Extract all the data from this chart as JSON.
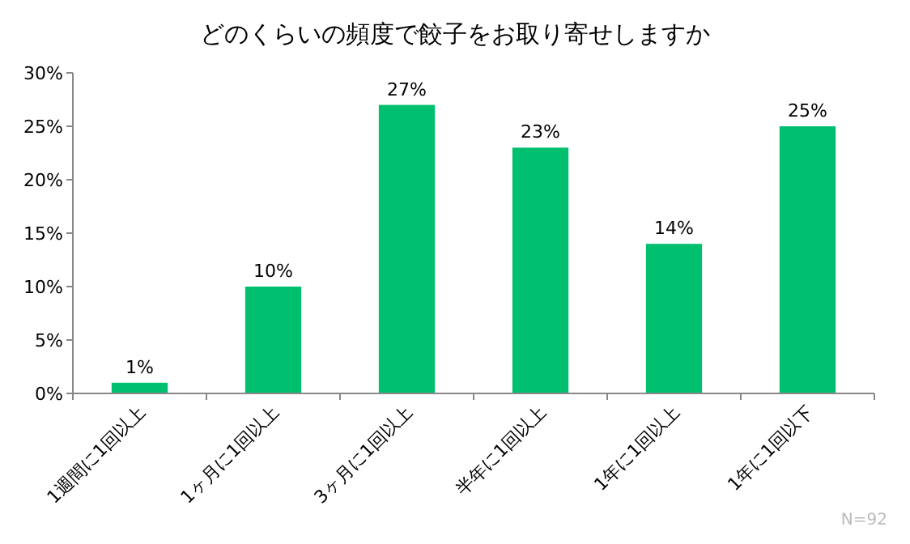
{
  "chart_data": {
    "type": "bar",
    "title": "どのくらいの頻度で餃子をお取り寄せしますか",
    "categories": [
      "1週間に1回以上",
      "1ヶ月に1回以上",
      "3ヶ月に1回以上",
      "半年に1回以上",
      "1年に1回以上",
      "1年に1回以下"
    ],
    "values": [
      1,
      10,
      27,
      23,
      14,
      25
    ],
    "value_labels": [
      "1%",
      "10%",
      "27%",
      "23%",
      "14%",
      "25%"
    ],
    "color": "#00bf6f",
    "ylim": [
      0,
      30
    ],
    "yticks": [
      {
        "value": 0,
        "label": "0%"
      },
      {
        "value": 5,
        "label": "5%"
      },
      {
        "value": 10,
        "label": "10%"
      },
      {
        "value": 15,
        "label": "15%"
      },
      {
        "value": 20,
        "label": "20%"
      },
      {
        "value": 25,
        "label": "25%"
      },
      {
        "value": 30,
        "label": "30%"
      }
    ],
    "grid": false,
    "annotations": [
      "N=92"
    ]
  }
}
